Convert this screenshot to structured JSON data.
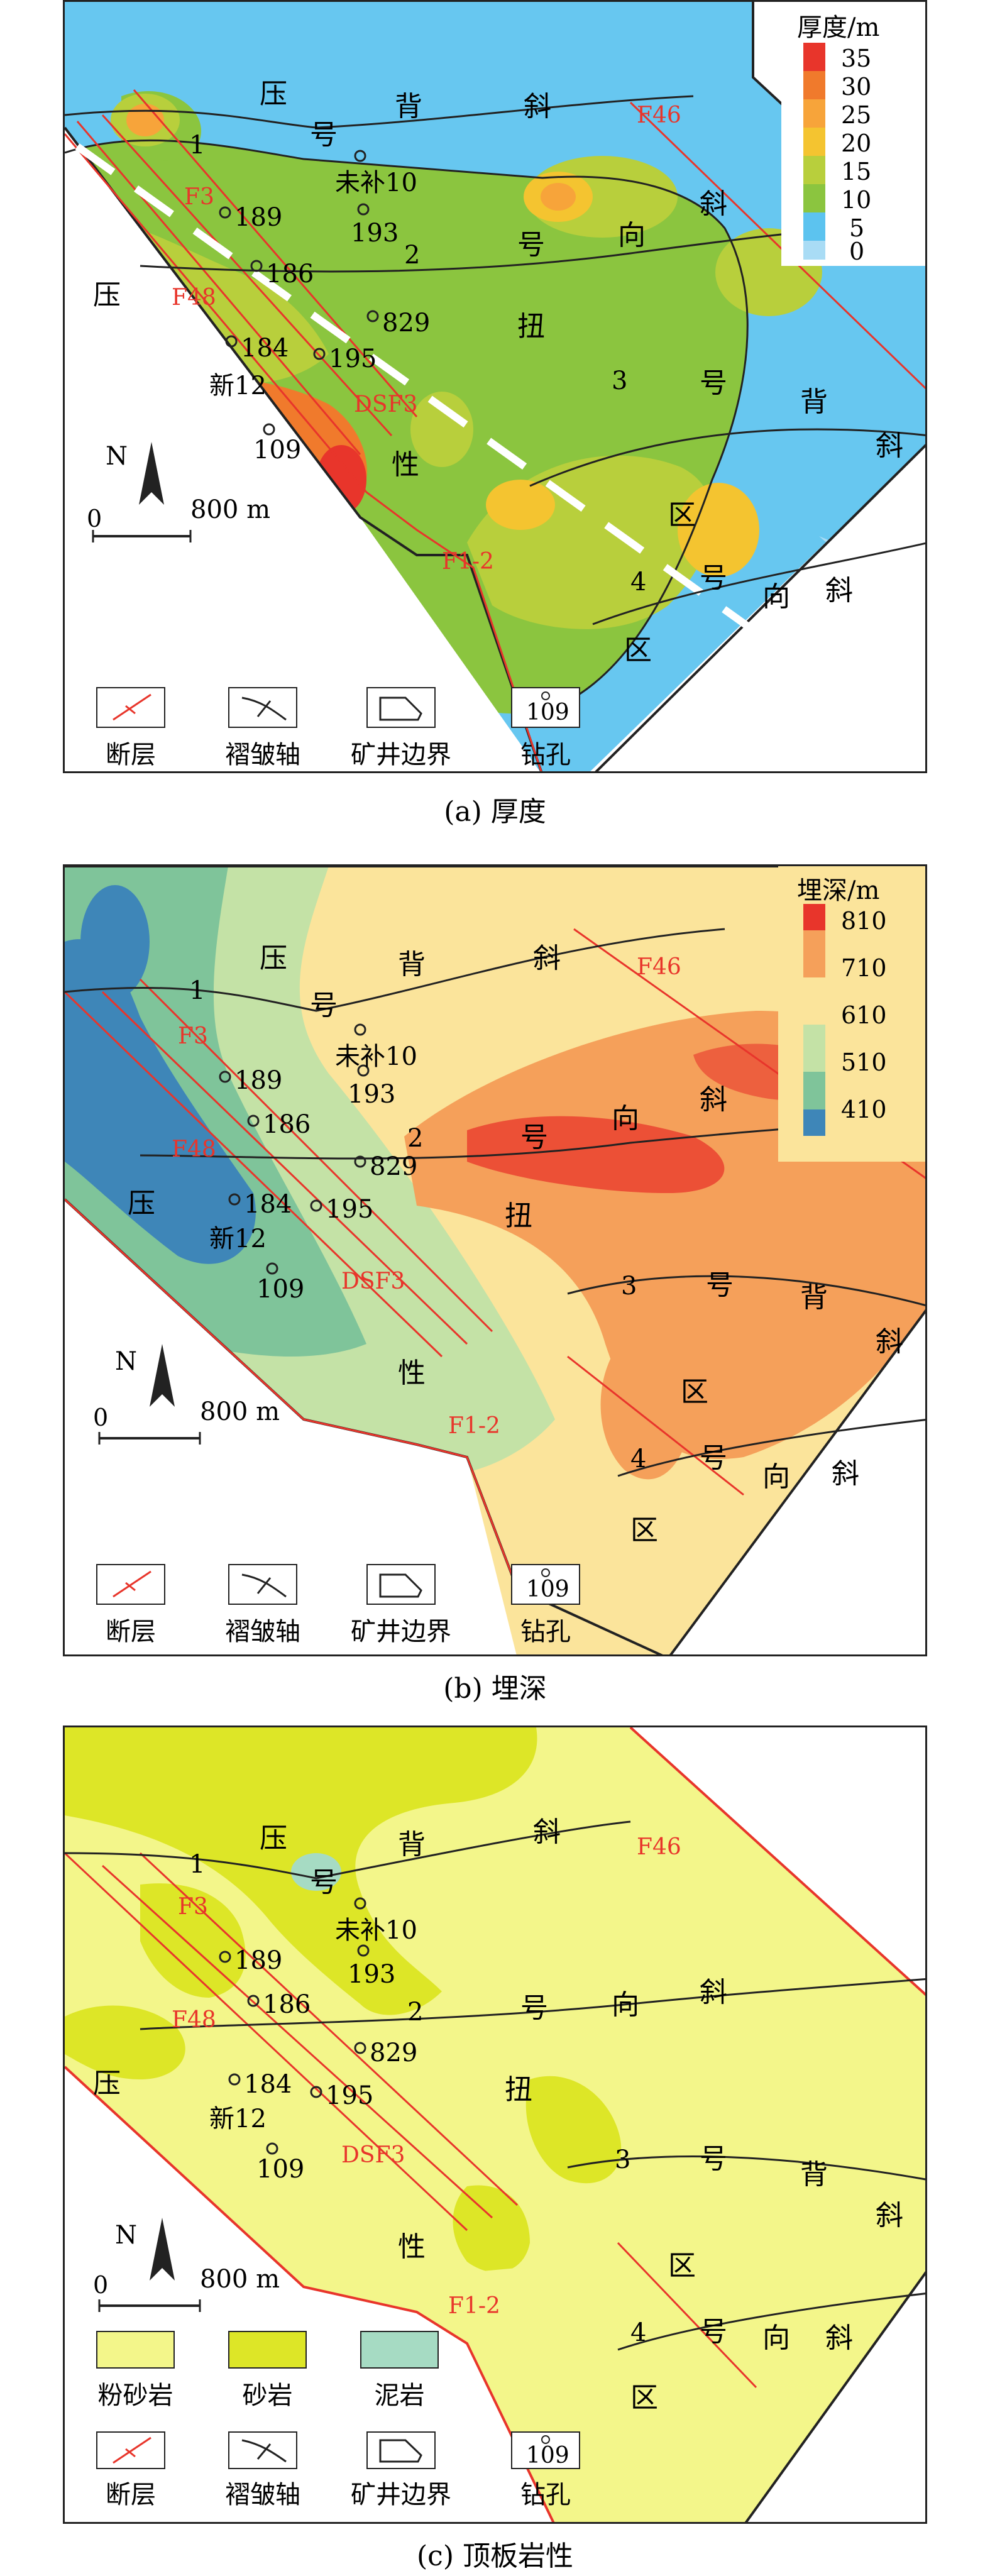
{
  "panels": [
    {
      "id": "a",
      "caption": "(a) 厚度",
      "colorbar": {
        "title": "厚度/m",
        "ticks": [
          "35",
          "30",
          "25",
          "20",
          "15",
          "10",
          "5",
          "0"
        ],
        "colors": [
          "#e8352b",
          "#f07a2c",
          "#f7a43a",
          "#f4c430",
          "#b8cf3c",
          "#8bc53f",
          "#5cc3ef",
          "#a9dcf5"
        ]
      }
    },
    {
      "id": "b",
      "caption": "(b) 埋深",
      "colorbar": {
        "title": "埋深/m",
        "ticks": [
          "810",
          "710",
          "610",
          "510",
          "410"
        ],
        "colors": [
          "#e8352b",
          "#f5a05a",
          "#fbe49b",
          "#c4e2a6",
          "#7fc49a",
          "#3e86b8"
        ]
      }
    },
    {
      "id": "c",
      "caption": "(c) 顶板岩性",
      "lithology": [
        {
          "label": "粉砂岩",
          "color": "#f3f68a"
        },
        {
          "label": "砂岩",
          "color": "#dde627"
        },
        {
          "label": "泥岩",
          "color": "#a6dbc3"
        }
      ]
    }
  ],
  "map_labels": {
    "fold1": "1",
    "fold2": "2",
    "fold3": "3",
    "fold4": "4",
    "ya": "压",
    "hao_top": "号",
    "bei": "背",
    "xie_top": "斜",
    "hao_mid": "号",
    "xiang": "向",
    "xie_mid": "斜",
    "ya_left": "压",
    "niu": "扭",
    "xing": "性",
    "hao_3": "号",
    "bei_3": "背",
    "xie_3": "斜",
    "qu_mid": "区",
    "hao_4": "号",
    "xiang_4": "向",
    "xie_4": "斜",
    "qu_bottom": "区"
  },
  "faults": {
    "f46": "F46",
    "f3": "F3",
    "f48": "F48",
    "dsf3": "DSF3",
    "f12": "F1-2"
  },
  "boreholes": [
    "未补10",
    "189",
    "193",
    "186",
    "829",
    "184",
    "新12",
    "195",
    "109"
  ],
  "scale": {
    "north": "N",
    "zero": "0",
    "distance": "800 m"
  },
  "legend": {
    "fault": "断层",
    "fold_axis": "褶皱轴",
    "mine_boundary": "矿井边界",
    "borehole": "钻孔",
    "borehole_sample": "109"
  }
}
